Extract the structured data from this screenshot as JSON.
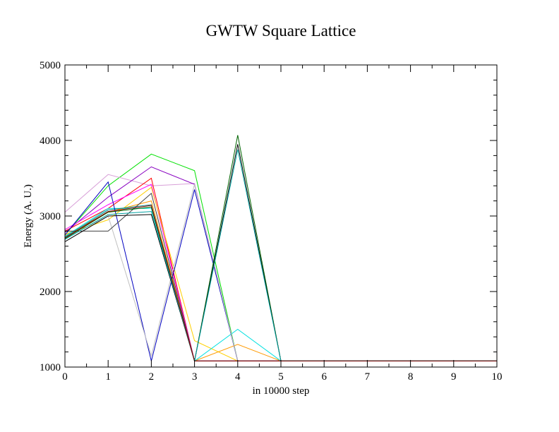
{
  "chart_data": {
    "type": "line",
    "title": "GWTW Square Lattice",
    "xlabel": "in 10000 step",
    "ylabel": "Energy (A. U.)",
    "xlim": [
      0,
      10
    ],
    "ylim": [
      1000,
      5000
    ],
    "xticks": [
      0,
      1,
      2,
      3,
      4,
      5,
      6,
      7,
      8,
      9,
      10
    ],
    "yticks": [
      1000,
      2000,
      3000,
      4000,
      5000
    ],
    "x_tick_labels": [
      "0",
      "1",
      "2",
      "3",
      "4",
      "5",
      "6",
      "7",
      "8",
      "9",
      "10"
    ],
    "y_tick_labels": [
      "1000",
      "2000",
      "3000",
      "4000",
      "5000"
    ],
    "grid": false,
    "legend": false,
    "series": [
      {
        "color": "#00e000",
        "x": [
          0,
          1,
          2,
          3,
          4,
          5,
          6,
          7,
          8,
          9,
          10
        ],
        "y": [
          2750,
          3400,
          3820,
          3600,
          1080,
          1080,
          1080,
          1080,
          1080,
          1080,
          1080
        ]
      },
      {
        "color": "#d8a0d8",
        "x": [
          0,
          1,
          2,
          3,
          4,
          5,
          6,
          7,
          8,
          9,
          10
        ],
        "y": [
          3050,
          3550,
          3400,
          3430,
          1080,
          1080,
          1080,
          1080,
          1080,
          1080,
          1080
        ]
      },
      {
        "color": "#8800c0",
        "x": [
          0,
          1,
          2,
          3,
          4,
          5,
          6,
          7,
          8,
          9,
          10
        ],
        "y": [
          2780,
          3250,
          3650,
          3420,
          1080,
          1080,
          1080,
          1080,
          1080,
          1080,
          1080
        ]
      },
      {
        "color": "#ff0000",
        "x": [
          0,
          1,
          2,
          3,
          4,
          5,
          6,
          7,
          8,
          9,
          10
        ],
        "y": [
          2800,
          3100,
          3500,
          1080,
          1080,
          1080,
          1080,
          1080,
          1080,
          1080,
          1080
        ]
      },
      {
        "color": "#ff00ff",
        "x": [
          0,
          1,
          2,
          3,
          4,
          5,
          6,
          7,
          8,
          9,
          10
        ],
        "y": [
          2820,
          3150,
          3420,
          1080,
          1080,
          1080,
          1080,
          1080,
          1080,
          1080,
          1080
        ]
      },
      {
        "color": "#ffd000",
        "x": [
          0,
          1,
          2,
          3,
          4,
          5,
          6,
          7,
          8,
          9,
          10
        ],
        "y": [
          2760,
          2950,
          3380,
          1350,
          1080,
          1080,
          1080,
          1080,
          1080,
          1080,
          1080
        ]
      },
      {
        "color": "#ff9900",
        "x": [
          0,
          1,
          2,
          3,
          4,
          5,
          6,
          7,
          8,
          9,
          10
        ],
        "y": [
          2740,
          3050,
          3200,
          1080,
          1300,
          1080,
          1080,
          1080,
          1080,
          1080,
          1080
        ]
      },
      {
        "color": "#00e0e0",
        "x": [
          0,
          1,
          2,
          3,
          4,
          5,
          6,
          7,
          8,
          9,
          10
        ],
        "y": [
          2730,
          3100,
          3100,
          1080,
          1500,
          1080,
          1080,
          1080,
          1080,
          1080,
          1080
        ]
      },
      {
        "color": "#008888",
        "x": [
          0,
          1,
          2,
          3,
          4,
          5,
          6,
          7,
          8,
          9,
          10
        ],
        "y": [
          2720,
          3080,
          3150,
          1080,
          1080,
          1080,
          1080,
          1080,
          1080,
          1080,
          1080
        ]
      },
      {
        "color": "#0000c0",
        "x": [
          0,
          1,
          2,
          3,
          4,
          5,
          6,
          7,
          8,
          9,
          10
        ],
        "y": [
          2750,
          3450,
          1080,
          3350,
          1080,
          1080,
          1080,
          1080,
          1080,
          1080,
          1080
        ]
      },
      {
        "color": "#c0c0c0",
        "x": [
          0,
          1,
          2,
          3,
          4,
          5,
          6,
          7,
          8,
          9,
          10
        ],
        "y": [
          2700,
          3000,
          1150,
          3420,
          1080,
          1080,
          1080,
          1080,
          1080,
          1080,
          1080
        ]
      },
      {
        "color": "#404040",
        "x": [
          0,
          1,
          2,
          3,
          4,
          5,
          6,
          7,
          8,
          9,
          10
        ],
        "y": [
          2800,
          2800,
          3300,
          1080,
          1080,
          1080,
          1080,
          1080,
          1080,
          1080,
          1080
        ]
      },
      {
        "color": "#006400",
        "x": [
          0,
          1,
          2,
          3,
          4,
          5,
          6,
          7,
          8,
          9,
          10
        ],
        "y": [
          2700,
          3050,
          3120,
          1080,
          4070,
          1080,
          1080,
          1080,
          1080,
          1080,
          1080
        ]
      },
      {
        "color": "#000000",
        "x": [
          0,
          1,
          2,
          3,
          4,
          5,
          6,
          7,
          8,
          9,
          10
        ],
        "y": [
          2660,
          3000,
          3020,
          1080,
          3950,
          1080,
          1080,
          1080,
          1080,
          1080,
          1080
        ]
      },
      {
        "color": "#00a0a0",
        "x": [
          0,
          1,
          2,
          3,
          4,
          5,
          6,
          7,
          8,
          9,
          10
        ],
        "y": [
          2690,
          3020,
          3060,
          1080,
          3880,
          1080,
          1080,
          1080,
          1080,
          1080,
          1080
        ]
      },
      {
        "color": "#8b0000",
        "x": [
          0,
          1,
          2,
          3,
          4,
          5,
          6,
          7,
          8,
          9,
          10
        ],
        "y": [
          2710,
          3060,
          3140,
          1080,
          1080,
          1080,
          1080,
          1080,
          1080,
          1080,
          1080
        ]
      }
    ]
  }
}
